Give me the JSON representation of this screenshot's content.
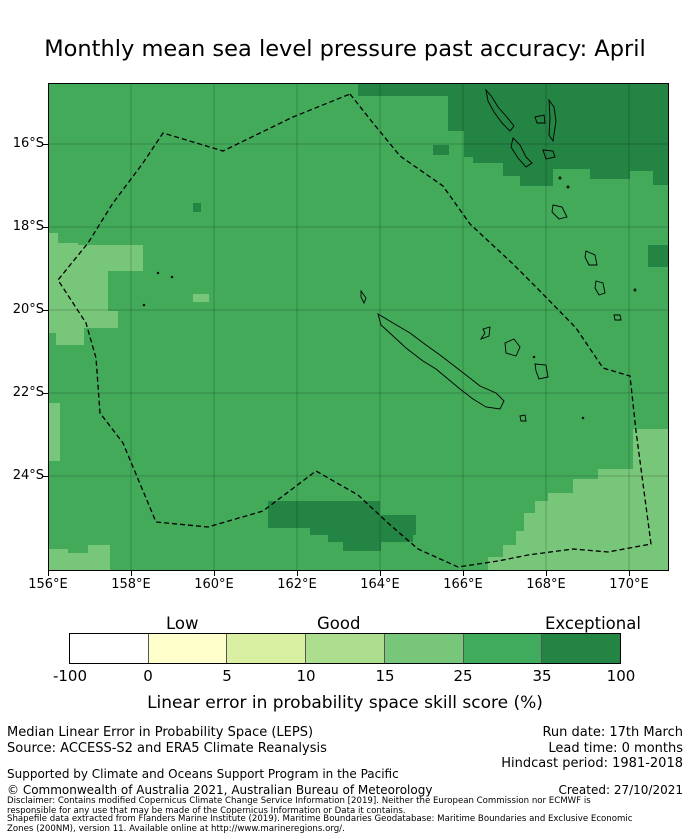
{
  "title": "Monthly mean sea level pressure past accuracy: April",
  "map": {
    "lat_labels": [
      "16°S",
      "18°S",
      "20°S",
      "22°S",
      "24°S"
    ],
    "lon_labels": [
      "156°E",
      "158°E",
      "160°E",
      "162°E",
      "164°E",
      "166°E",
      "168°E",
      "170°E"
    ],
    "extent": {
      "lon_min": 156.0,
      "lon_max": 171.0,
      "lat_north": -14.5,
      "lat_south": -26.3
    },
    "base_color": "#43aa5a"
  },
  "colorbar": {
    "categories": [
      "Low",
      "Good",
      "Exceptional"
    ],
    "ticks": [
      "-100",
      "0",
      "5",
      "10",
      "15",
      "25",
      "35",
      "100"
    ],
    "colors": [
      "#ffffff",
      "#ffffcc",
      "#d9f0a3",
      "#addd8e",
      "#78c679",
      "#41ab5d",
      "#238443"
    ],
    "label": "Linear error in probability space skill score (%)"
  },
  "info": {
    "metric": "Median Linear Error in Probability Space (LEPS)",
    "source": "Source: ACCESS-S2 and ERA5 Climate Reanalysis",
    "support": "Supported by Climate and Oceans Support Program in the Pacific",
    "copyright": "© Commonwealth of Australia 2021, Australian Bureau of Meteorology",
    "run_date": "Run date: 17th March",
    "lead_time": "Lead time: 0 months",
    "hindcast": "Hindcast period: 1981-2018",
    "created": "Created: 27/10/2021",
    "disclaimer_1": "Disclaimer: Contains modified Copernicus Climate Change Service Information [2019]. Neither the European Commission nor ECMWF is",
    "disclaimer_2": "responsible for any use that may be made of the Copernicus Information or Data it contains.",
    "disclaimer_3": "Shapefile data extracted from Flanders Marine Institute (2019). Maritime Boundaries Geodatabase: Maritime Boundaries and Exclusive Economic",
    "disclaimer_4": "Zones (200NM), version 11. Available online at http://www.marineregions.org/."
  }
}
